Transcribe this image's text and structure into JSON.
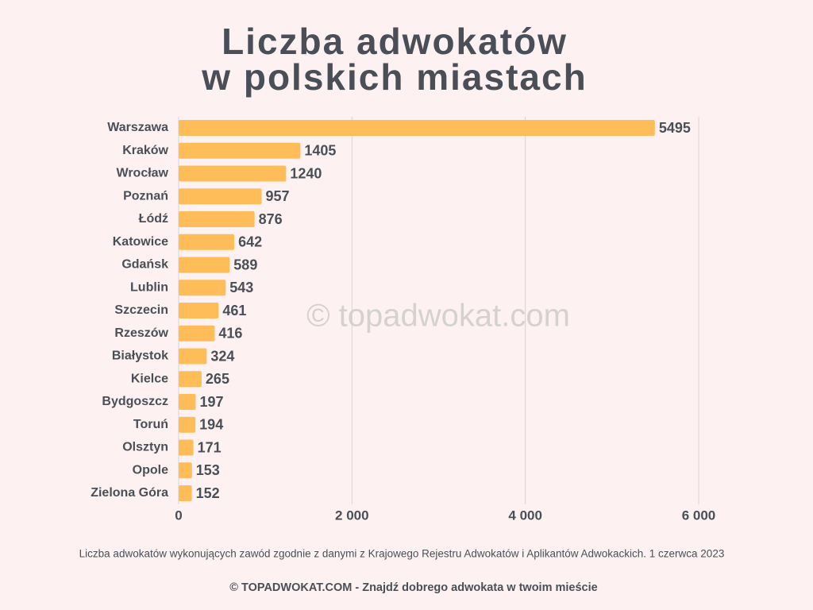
{
  "chart_data": {
    "type": "bar",
    "orientation": "horizontal",
    "title": [
      "Liczba adwokatów",
      "w polskich miastach"
    ],
    "categories": [
      "Warszawa",
      "Kraków",
      "Wrocław",
      "Poznań",
      "Łódź",
      "Katowice",
      "Gdańsk",
      "Lublin",
      "Szczecin",
      "Rzeszów",
      "Białystok",
      "Kielce",
      "Bydgoszcz",
      "Toruń",
      "Olsztyn",
      "Opole",
      "Zielona Góra"
    ],
    "values": [
      5495,
      1405,
      1240,
      957,
      876,
      642,
      589,
      543,
      461,
      416,
      324,
      265,
      197,
      194,
      171,
      153,
      152
    ],
    "color": "#ffbd59",
    "xlim": [
      0,
      6000
    ],
    "xticks": [
      0,
      {
        "value": 2000,
        "label": "2 000"
      },
      {
        "value": 4000,
        "label": "4 000"
      },
      {
        "value": 6000,
        "label": "6 000"
      }
    ],
    "grid": true,
    "watermark": "© topadwokat.com",
    "note": "Liczba adwokatów wykonujących zawód zgodnie z danymi z Krajowego Rejestru Adwokatów i Aplikantów Adwokackich. 1 czerwca 2023",
    "credit": "© TOPADWOKAT.COM - Znajdź dobrego adwokata w twoim mieście"
  }
}
